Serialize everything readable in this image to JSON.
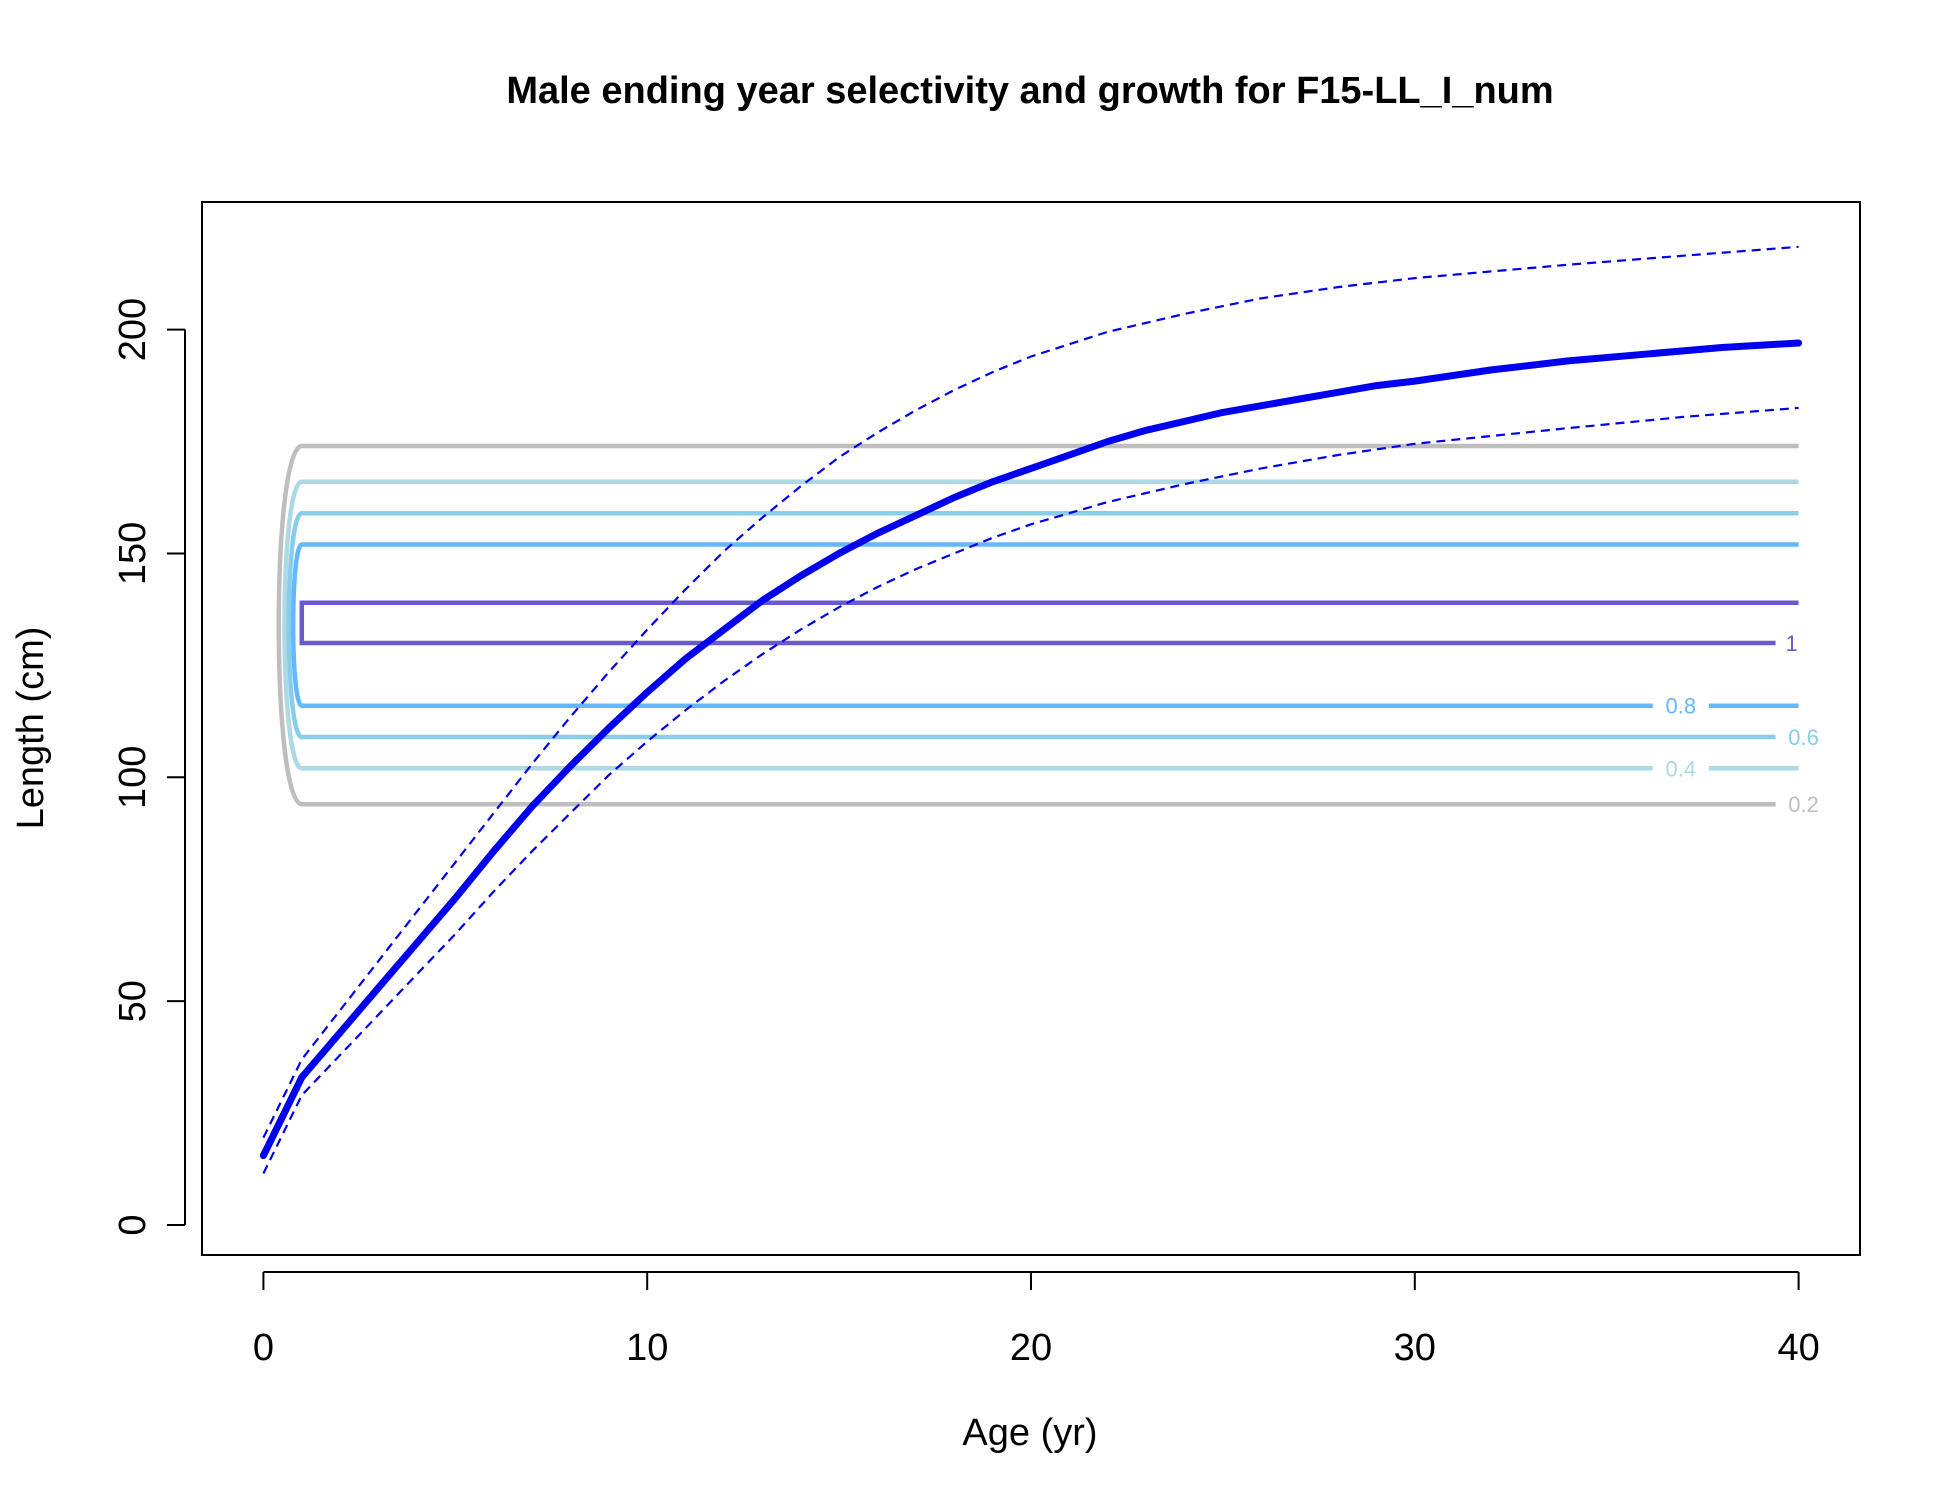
{
  "chart_data": {
    "type": "line",
    "title": "Male ending year selectivity and growth for F15-LL_I_num",
    "xlabel": "Age (yr)",
    "ylabel": "Length (cm)",
    "xlim": [
      -1.6,
      41.6
    ],
    "ylim": [
      -6.7,
      228.5
    ],
    "x_ticks": [
      0,
      10,
      20,
      30,
      40
    ],
    "y_ticks": [
      0,
      50,
      100,
      150,
      200
    ],
    "grid": false,
    "growth": {
      "color": "#0000ee",
      "mean": [
        [
          0,
          15.5
        ],
        [
          1,
          33
        ],
        [
          2,
          43
        ],
        [
          3,
          53
        ],
        [
          4,
          63
        ],
        [
          5,
          73
        ],
        [
          6,
          83.5
        ],
        [
          7,
          93.5
        ],
        [
          8,
          102.5
        ],
        [
          9,
          111
        ],
        [
          10,
          119
        ],
        [
          11,
          126.5
        ],
        [
          12,
          133
        ],
        [
          13,
          139.5
        ],
        [
          14,
          145
        ],
        [
          15,
          150
        ],
        [
          16,
          154.5
        ],
        [
          17,
          158.5
        ],
        [
          18,
          162.5
        ],
        [
          19,
          166
        ],
        [
          20,
          169
        ],
        [
          21,
          172
        ],
        [
          22,
          175
        ],
        [
          23,
          177.5
        ],
        [
          24,
          179.5
        ],
        [
          25,
          181.5
        ],
        [
          26,
          183
        ],
        [
          27,
          184.5
        ],
        [
          28,
          186
        ],
        [
          29,
          187.5
        ],
        [
          30,
          188.5
        ],
        [
          32,
          191
        ],
        [
          34,
          193
        ],
        [
          36,
          194.5
        ],
        [
          38,
          196
        ],
        [
          40,
          197
        ]
      ],
      "upper": [
        [
          0,
          19.5
        ],
        [
          1,
          37
        ],
        [
          2,
          48
        ],
        [
          3,
          59
        ],
        [
          4,
          70
        ],
        [
          5,
          81
        ],
        [
          6,
          92
        ],
        [
          7,
          103
        ],
        [
          8,
          113.5
        ],
        [
          9,
          123.5
        ],
        [
          10,
          133
        ],
        [
          11,
          142
        ],
        [
          12,
          150.5
        ],
        [
          13,
          158
        ],
        [
          14,
          165
        ],
        [
          15,
          171.5
        ],
        [
          16,
          177
        ],
        [
          17,
          182
        ],
        [
          18,
          186.5
        ],
        [
          19,
          190.5
        ],
        [
          20,
          194
        ],
        [
          22,
          199.5
        ],
        [
          24,
          203.5
        ],
        [
          26,
          207
        ],
        [
          28,
          209.5
        ],
        [
          30,
          211.5
        ],
        [
          34,
          214.5
        ],
        [
          37,
          216.5
        ],
        [
          40,
          218.5
        ]
      ],
      "lower": [
        [
          0,
          11.5
        ],
        [
          1,
          29
        ],
        [
          2,
          38
        ],
        [
          3,
          47
        ],
        [
          4,
          56
        ],
        [
          5,
          65
        ],
        [
          6,
          74.5
        ],
        [
          7,
          83.5
        ],
        [
          8,
          92
        ],
        [
          9,
          100.5
        ],
        [
          10,
          108
        ],
        [
          11,
          115
        ],
        [
          12,
          121.5
        ],
        [
          13,
          127.5
        ],
        [
          14,
          133
        ],
        [
          15,
          138
        ],
        [
          16,
          142.5
        ],
        [
          17,
          146.5
        ],
        [
          18,
          150
        ],
        [
          19,
          153.5
        ],
        [
          20,
          156.5
        ],
        [
          22,
          161.5
        ],
        [
          24,
          165.5
        ],
        [
          26,
          169
        ],
        [
          28,
          172
        ],
        [
          30,
          174.5
        ],
        [
          34,
          178
        ],
        [
          37,
          180.5
        ],
        [
          40,
          182.5
        ]
      ]
    },
    "selectivity_contours": [
      {
        "level": 0.2,
        "label": "0.2",
        "color": "#bebebe",
        "lower": 94,
        "upper": 174,
        "label_x": 39.4
      },
      {
        "level": 0.4,
        "label": "0.4",
        "color": "#add8e6",
        "lower": 102,
        "upper": 166,
        "label_x": 36.2
      },
      {
        "level": 0.6,
        "label": "0.6",
        "color": "#87ceeb",
        "lower": 109,
        "upper": 159,
        "label_x": 39.4
      },
      {
        "level": 0.8,
        "label": "0.8",
        "color": "#63b8ff",
        "lower": 116,
        "upper": 152,
        "label_x": 36.2
      },
      {
        "level": 1,
        "label": "1",
        "color": "#6a5acd",
        "lower": 130,
        "upper": 139,
        "label_x": 39.4
      }
    ]
  }
}
